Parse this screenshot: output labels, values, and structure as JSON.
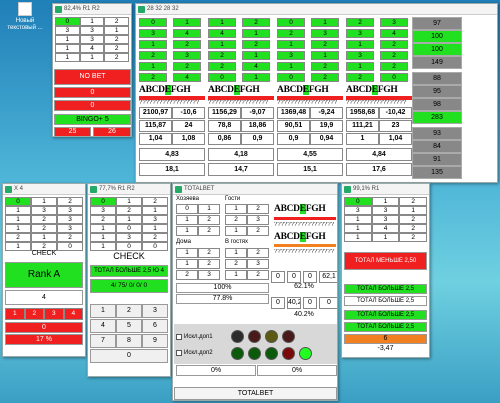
{
  "desktop": {
    "icon_label_1": "Новый",
    "icon_label_2": "текстовый ..."
  },
  "w1": {
    "title": "82,4% R1 R2",
    "grid": [
      [
        "0",
        "1",
        "2"
      ],
      [
        "3",
        "3",
        "1"
      ],
      [
        "1",
        "3",
        "2"
      ],
      [
        "1",
        "4",
        "2"
      ],
      [
        "1",
        "1",
        "2"
      ]
    ],
    "no_bet": "NO BET",
    "zero1": "0",
    "zero2": "0",
    "bingo": "BINGO+ 5",
    "left": "25",
    "right": "26"
  },
  "w2": {
    "title": "28 32 28 32",
    "cols": [
      {
        "pairs": [
          [
            "0",
            "1"
          ],
          [
            "3",
            "4"
          ],
          [
            "1",
            "2"
          ],
          [
            "2",
            "3"
          ],
          [
            "1",
            "2"
          ],
          [
            "2",
            "4"
          ]
        ],
        "nums": [
          [
            "2100,97",
            "-10,6"
          ],
          [
            "115,87",
            "24"
          ],
          [
            "1,04",
            "1,08"
          ]
        ],
        "sum": "4,83",
        "total": "18,1"
      },
      {
        "pairs": [
          [
            "1",
            "2"
          ],
          [
            "4",
            "1"
          ],
          [
            "1",
            "2"
          ],
          [
            "2",
            "1"
          ],
          [
            "2",
            "4"
          ],
          [
            "0",
            "1"
          ]
        ],
        "nums": [
          [
            "1156,29",
            "-9,07"
          ],
          [
            "78,8",
            "18,86"
          ],
          [
            "0,86",
            "0,9"
          ]
        ],
        "sum": "4,18",
        "total": "14,7"
      },
      {
        "pairs": [
          [
            "0",
            "1"
          ],
          [
            "2",
            "3"
          ],
          [
            "1",
            "2"
          ],
          [
            "3",
            "1"
          ],
          [
            "1",
            "2"
          ],
          [
            "0",
            "2"
          ]
        ],
        "nums": [
          [
            "1369,48",
            "-9,24"
          ],
          [
            "90,51",
            "19,9"
          ],
          [
            "0,9",
            "0,94"
          ]
        ],
        "sum": "4,55",
        "total": "15,1"
      },
      {
        "pairs": [
          [
            "2",
            "3"
          ],
          [
            "3",
            "4"
          ],
          [
            "1",
            "2"
          ],
          [
            "3",
            "2"
          ],
          [
            "1",
            "2"
          ],
          [
            "2",
            "0"
          ]
        ],
        "nums": [
          [
            "1958,68",
            "-10,42"
          ],
          [
            "111,21",
            "23"
          ],
          [
            "1",
            "1,04"
          ]
        ],
        "sum": "4,84",
        "total": "17,6"
      }
    ],
    "letters": [
      "A",
      "B",
      "C",
      "D",
      "E",
      "F",
      "G",
      "H"
    ],
    "qmarks": "??????????????????",
    "right_col": [
      {
        "v": "97",
        "c": "gr"
      },
      {
        "v": "100",
        "c": "g"
      },
      {
        "v": "100",
        "c": "g"
      },
      {
        "v": "149",
        "c": "gr"
      },
      {
        "v": "88",
        "c": "gr"
      },
      {
        "v": "95",
        "c": "gr"
      },
      {
        "v": "98",
        "c": "gr"
      },
      {
        "v": "283",
        "c": "g"
      },
      {
        "v": "93",
        "c": "gr"
      },
      {
        "v": "84",
        "c": "gr"
      },
      {
        "v": "91",
        "c": "gr"
      },
      {
        "v": "135",
        "c": "gr"
      }
    ]
  },
  "w3": {
    "title": "X 4",
    "grid": [
      [
        "0",
        "1",
        "2"
      ],
      [
        "1",
        "3",
        "3"
      ],
      [
        "1",
        "2",
        "3"
      ],
      [
        "1",
        "2",
        "3"
      ],
      [
        "2",
        "1",
        "2"
      ],
      [
        "1",
        "2",
        "0"
      ]
    ],
    "check": "CHECK",
    "rank": "Rank A",
    "four": "4",
    "reds": [
      "1",
      "2",
      "3",
      "4"
    ],
    "zero": "0",
    "pct": "17 %"
  },
  "w4": {
    "title": "77,7% R1 R2",
    "grid": [
      [
        "0",
        "1",
        "2"
      ],
      [
        "3",
        "2",
        "1"
      ],
      [
        "2",
        "1",
        "3"
      ],
      [
        "1",
        "0",
        "1"
      ],
      [
        "1",
        "3",
        "2"
      ],
      [
        "1",
        "0",
        "0"
      ]
    ],
    "check": "CHECK",
    "total": "ТОТАЛ БОЛЬШЕ 2,5 Ю 4",
    "ratio": "4/ 75/ 0/ 0/ 0",
    "keys": [
      "1",
      "2",
      "3",
      "4",
      "5",
      "6",
      "7",
      "8",
      "9",
      "0"
    ]
  },
  "w5": {
    "title": "TOTALBET",
    "hosts": "Хозяева",
    "guests": "Гости",
    "home": "Дома",
    "away": "В гостях",
    "g1": [
      [
        "0",
        "1"
      ],
      [
        "1",
        "2"
      ],
      [
        "1",
        "2"
      ]
    ],
    "g2": [
      [
        "1",
        "2"
      ],
      [
        "2",
        "3"
      ],
      [
        "1",
        "2"
      ]
    ],
    "g3": [
      [
        "1",
        "2"
      ],
      [
        "1",
        "2"
      ],
      [
        "2",
        "3"
      ]
    ],
    "g4": [
      [
        "1",
        "2"
      ],
      [
        "2",
        "3"
      ],
      [
        "1",
        "2"
      ]
    ],
    "p1": "100%",
    "p2": "77.8%",
    "letters": [
      "A",
      "B",
      "C",
      "D",
      "E",
      "F",
      "G",
      "H"
    ],
    "qmarks": "??????????????????",
    "s1": [
      "0",
      "0",
      "0",
      "62,1"
    ],
    "s1pct": "62.1%",
    "s2": [
      "0",
      "40,2",
      "0",
      "0"
    ],
    "s2pct": "40.2%",
    "chk1": "Искл.доп1",
    "chk2": "Искл.доп2",
    "circles_top": [
      "#2b2b2b",
      "#4a1a1a",
      "#5a5a10",
      "#4a1a1a"
    ],
    "circles_bot": [
      "#0a5a0a",
      "#0a5a0a",
      "#0a5a0a",
      "#7a0a0a",
      "#20ff20"
    ],
    "bottom_l": "0%",
    "bottom_r": "0%",
    "footer": "TOTALBET"
  },
  "w6": {
    "title": "99,1% R1",
    "grid": [
      [
        "0",
        "1",
        "2"
      ],
      [
        "3",
        "3",
        "1"
      ],
      [
        "1",
        "3",
        "2"
      ],
      [
        "1",
        "4",
        "2"
      ],
      [
        "1",
        "1",
        "2"
      ]
    ],
    "total_less": "ТОТАЛ МЕНЬШЕ 2,50",
    "more1": "ТОТАЛ БОЛЬШЕ 2,5",
    "more2": "ТОТАЛ БОЛЬШЕ 2,5",
    "more3": "ТОТАЛ БОЛЬШЕ 2,5",
    "more4": "ТОТАЛ БОЛЬШЕ 2,5",
    "six": "6",
    "last": "-3,47"
  }
}
